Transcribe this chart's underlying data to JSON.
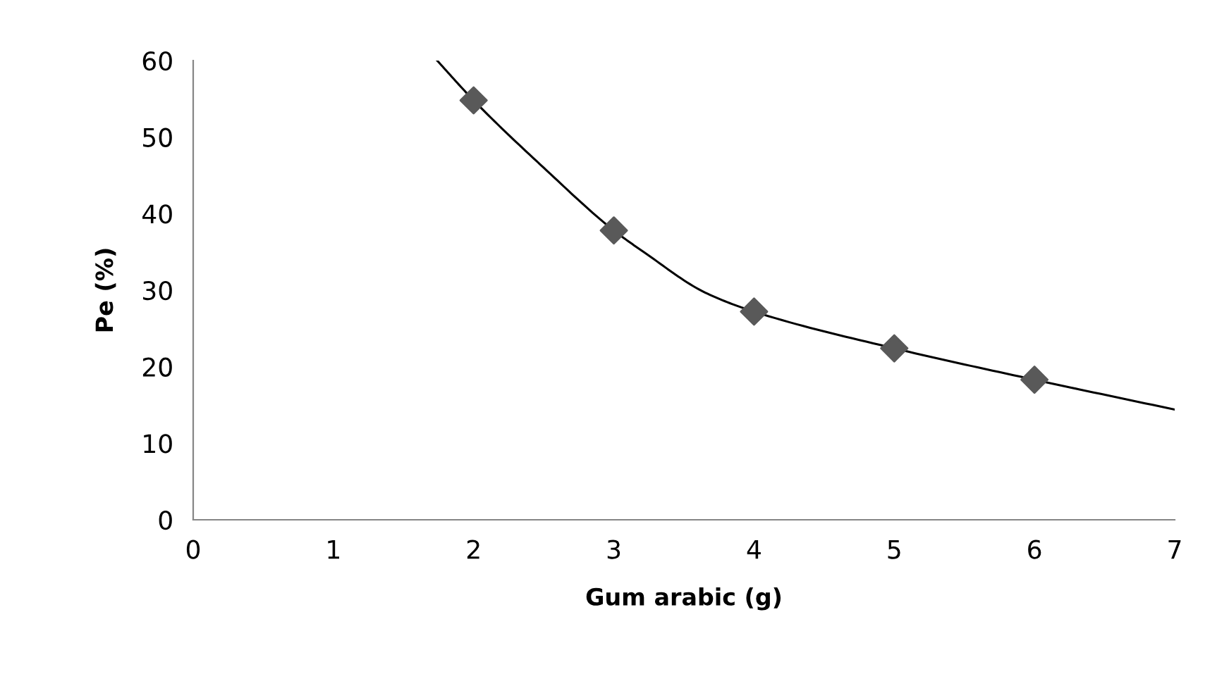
{
  "chart_data": {
    "type": "scatter",
    "xlabel": "Gum arabic (g)",
    "ylabel": "Pe (%)",
    "xlim": [
      0,
      7
    ],
    "xticks": [
      0,
      1,
      2,
      3,
      4,
      5,
      6,
      7
    ],
    "ylim": [
      0,
      60
    ],
    "yticks": [
      0,
      10,
      20,
      30,
      40,
      50,
      60
    ],
    "grid": false,
    "legend": false,
    "series": [
      {
        "marker": "diamond",
        "color": "#595959",
        "x": [
          2,
          3,
          4,
          5,
          6
        ],
        "values": [
          54.8,
          37.8,
          27.2,
          22.4,
          18.3
        ]
      },
      {
        "type": "line",
        "color": "#000000",
        "line_style": "solid",
        "x": [
          1.74,
          2,
          2.5,
          3,
          3.22,
          3.65,
          4,
          5,
          6,
          7
        ],
        "values": [
          60,
          54.8,
          46,
          37.8,
          34.9,
          29.7,
          27.2,
          22.4,
          18.3,
          14.4
        ]
      }
    ]
  }
}
